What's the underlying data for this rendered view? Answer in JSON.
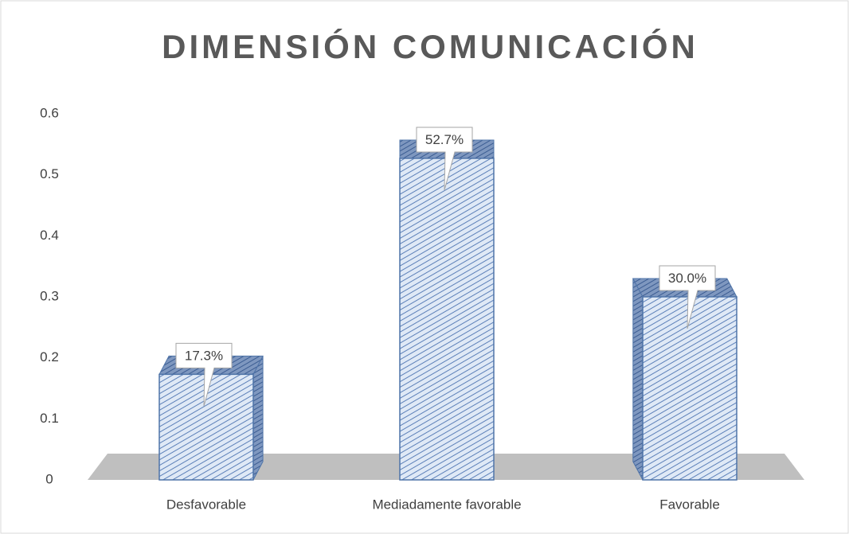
{
  "chart_data": {
    "type": "bar3d",
    "title": "DIMENSIÓN COMUNICACIÓN",
    "categories": [
      "Desfavorable",
      "Mediadamente favorable",
      "Favorable"
    ],
    "values": [
      0.173,
      0.527,
      0.3
    ],
    "value_labels": [
      "17.3%",
      "52.7%",
      "30.0%"
    ],
    "color": "#4f75b0",
    "ylim": [
      0,
      0.6
    ],
    "yticks": [
      0,
      0.1,
      0.2,
      0.3,
      0.4,
      0.5,
      0.6
    ]
  }
}
